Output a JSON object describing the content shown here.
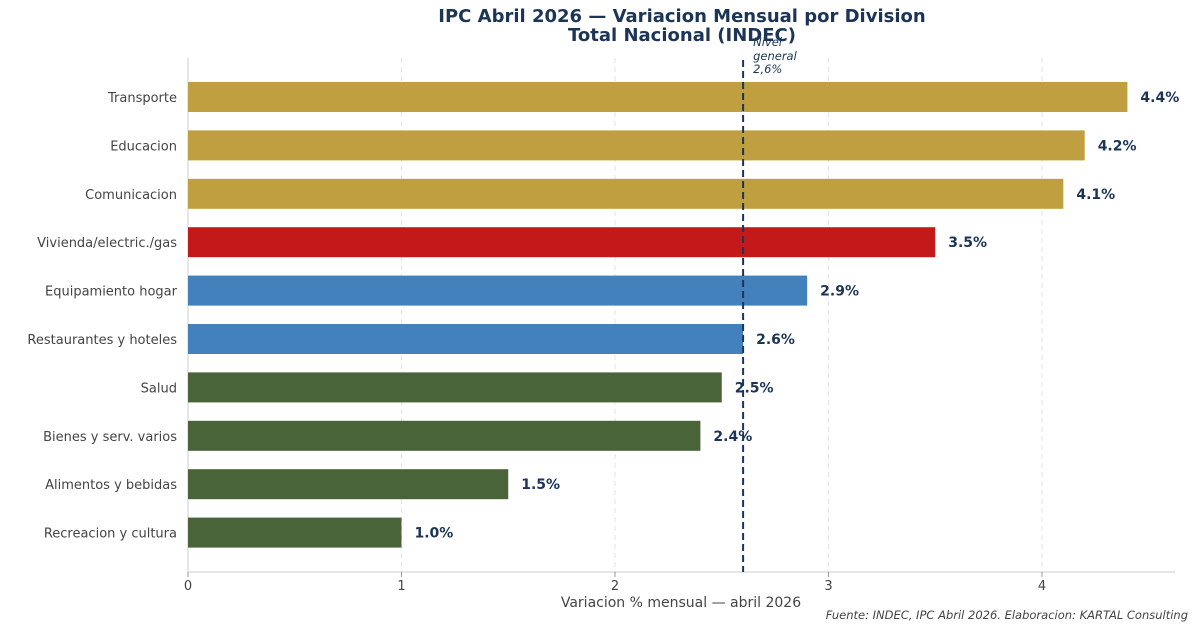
{
  "chart_data": {
    "type": "bar",
    "orientation": "horizontal",
    "title_line1": "IPC Abril 2026 — Variacion Mensual por Division",
    "title_line2": "Total Nacional (INDEC)",
    "xlabel": "Variacion % mensual — abril 2026",
    "xlim": [
      0,
      4.6
    ],
    "xticks": [
      "0",
      "1",
      "2",
      "3",
      "4"
    ],
    "grid": "vertical dashed",
    "categories": [
      "Transporte",
      "Educacion",
      "Comunicacion",
      "Vivienda/electric./gas",
      "Equipamiento hogar",
      "Restaurantes y hoteles",
      "Salud",
      "Bienes y serv. varios",
      "Alimentos y bebidas",
      "Recreacion y cultura"
    ],
    "values": [
      4.4,
      4.2,
      4.1,
      3.5,
      2.9,
      2.6,
      2.5,
      2.4,
      1.5,
      1.0
    ],
    "value_labels": [
      "4.4%",
      "4.2%",
      "4.1%",
      "3.5%",
      "2.9%",
      "2.6%",
      "2.5%",
      "2.4%",
      "1.5%",
      "1.0%"
    ],
    "bar_colors": [
      "#c09f41",
      "#c09f41",
      "#c09f41",
      "#c4191b",
      "#4381bd",
      "#4381bd",
      "#486438",
      "#486438",
      "#486438",
      "#486438"
    ],
    "reference_line": {
      "value": 2.6,
      "label_lines": [
        "Nivel",
        "general",
        "2,6%"
      ],
      "color": "#1c3557"
    },
    "source": "Fuente: INDEC, IPC Abril 2026. Elaboracion: KARTAL Consulting"
  }
}
